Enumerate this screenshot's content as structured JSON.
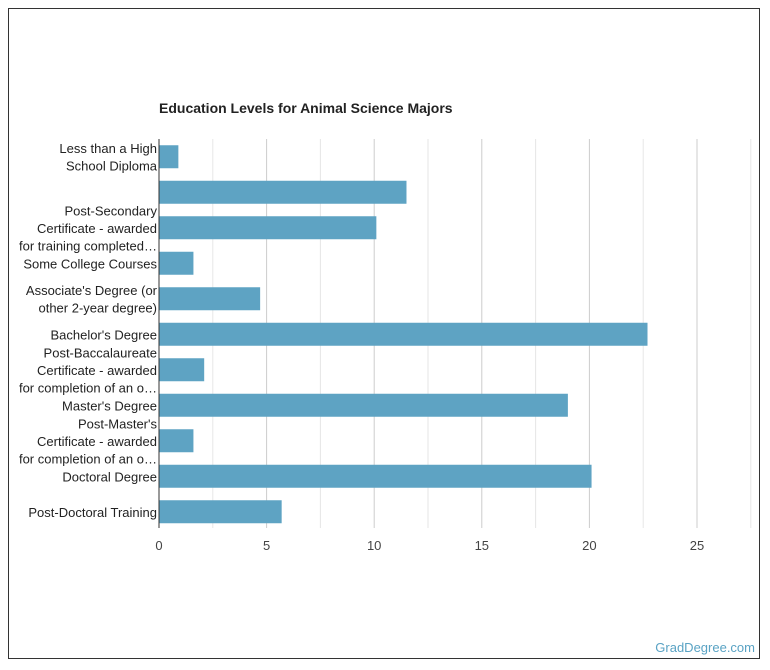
{
  "chart_data": {
    "type": "bar",
    "orientation": "horizontal",
    "title": "Education Levels for Animal Science Majors",
    "xlabel": "",
    "ylabel": "",
    "categories": [
      [
        "Less than a High",
        "School Diploma"
      ],
      [
        ""
      ],
      [
        "Post-Secondary",
        "Certificate - awarded",
        "for training completed…"
      ],
      [
        "Some College Courses"
      ],
      [
        "Associate's Degree (or",
        "other 2-year degree)"
      ],
      [
        "Bachelor's Degree"
      ],
      [
        "Post-Baccalaureate",
        "Certificate - awarded",
        "for completion of an o…"
      ],
      [
        "Master's Degree"
      ],
      [
        "Post-Master's",
        "Certificate - awarded",
        "for completion of an o…"
      ],
      [
        "Doctoral Degree"
      ],
      [
        "Post-Doctoral Training"
      ]
    ],
    "values": [
      0.9,
      11.5,
      10.1,
      1.6,
      4.7,
      22.7,
      2.1,
      19.0,
      1.6,
      20.1,
      5.7
    ],
    "xlim": [
      0,
      25
    ],
    "xticks": [
      0,
      5,
      10,
      15,
      20,
      25
    ],
    "grid": true,
    "bar_color": "#5ea3c3"
  },
  "footer": {
    "credit": "GradDegree.com"
  }
}
